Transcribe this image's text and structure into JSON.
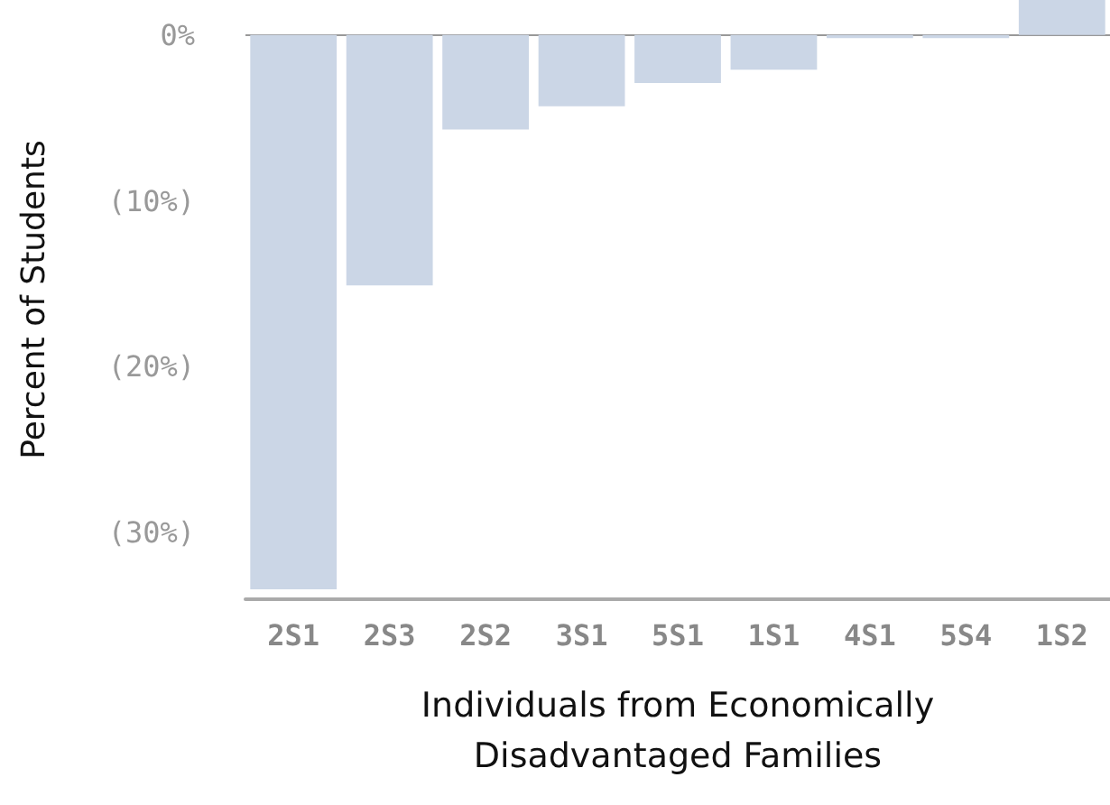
{
  "chart_data": {
    "type": "bar",
    "xlabel": "Individuals from Economically\nDisadvantaged Families",
    "ylabel": "Percent of Students",
    "categories": [
      "2S1",
      "2S3",
      "2S2",
      "3S1",
      "5S1",
      "1S1",
      "4S1",
      "5S4",
      "1S2"
    ],
    "values": [
      -33.4,
      -15.1,
      -5.7,
      -4.3,
      -2.9,
      -2.1,
      -0.2,
      -0.2,
      2.1
    ],
    "color": "#cbd6e6",
    "ylim": [
      -34,
      2.1
    ],
    "yticks": [
      {
        "value": 0,
        "label": "0%"
      },
      {
        "value": -10,
        "label": "(10%)"
      },
      {
        "value": -20,
        "label": "(20%)"
      },
      {
        "value": -30,
        "label": "(30%)"
      }
    ],
    "ref_lines": [
      {
        "axis": "y",
        "value": 0,
        "label": null,
        "color": "#999999"
      }
    ],
    "grid": false
  }
}
